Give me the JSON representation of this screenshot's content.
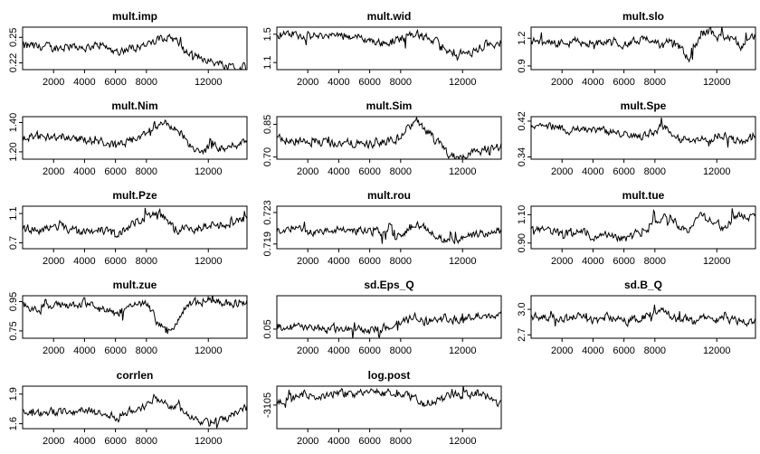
{
  "chart_data": {
    "type": "line",
    "layout": "5x3 grid of MCMC trace plots",
    "x_ticks": [
      2000,
      4000,
      6000,
      8000,
      12000
    ],
    "xlim": [
      0,
      14500
    ],
    "panels": [
      {
        "title": "mult.imp",
        "yticks": [
          "0.22",
          "0.25"
        ],
        "ylim": [
          0.212,
          0.262
        ],
        "x": [
          0,
          1000,
          2000,
          3000,
          4000,
          5000,
          6000,
          7000,
          8000,
          8800,
          9200,
          9600,
          10000,
          10500,
          11000,
          11500,
          12000,
          12500,
          13000,
          13500,
          14000,
          14500
        ],
        "y": [
          0.24,
          0.239,
          0.237,
          0.24,
          0.238,
          0.241,
          0.233,
          0.238,
          0.241,
          0.248,
          0.254,
          0.25,
          0.245,
          0.232,
          0.227,
          0.226,
          0.222,
          0.22,
          0.219,
          0.218,
          0.214,
          0.22
        ]
      },
      {
        "title": "mult.wid",
        "yticks": [
          "1.1",
          "1.5"
        ],
        "ylim": [
          1.0,
          1.6
        ],
        "x": [
          0,
          1000,
          2000,
          3000,
          4000,
          5000,
          6000,
          7000,
          8000,
          8500,
          9000,
          9500,
          10000,
          10500,
          11000,
          11500,
          12000,
          12500,
          13000,
          13500,
          14000,
          14500
        ],
        "y": [
          1.48,
          1.5,
          1.48,
          1.47,
          1.49,
          1.47,
          1.41,
          1.37,
          1.44,
          1.48,
          1.52,
          1.46,
          1.42,
          1.31,
          1.25,
          1.22,
          1.22,
          1.24,
          1.3,
          1.34,
          1.38,
          1.4
        ]
      },
      {
        "title": "mult.slo",
        "yticks": [
          "0.9",
          "1.2"
        ],
        "ylim": [
          0.86,
          1.32
        ],
        "x": [
          0,
          1000,
          2000,
          3000,
          4000,
          5000,
          6000,
          7000,
          8000,
          8500,
          9000,
          9500,
          10000,
          10500,
          11000,
          11500,
          12000,
          12500,
          13000,
          13500,
          14000,
          14500
        ],
        "y": [
          1.17,
          1.16,
          1.15,
          1.17,
          1.14,
          1.16,
          1.13,
          1.18,
          1.2,
          1.08,
          1.22,
          1.12,
          0.98,
          1.1,
          1.25,
          1.28,
          1.22,
          1.2,
          1.19,
          1.1,
          1.2,
          1.22
        ]
      },
      {
        "title": "mult.Nim",
        "yticks": [
          "1.20",
          "1.40"
        ],
        "ylim": [
          1.15,
          1.44
        ],
        "x": [
          0,
          1000,
          2000,
          3000,
          4000,
          5000,
          6000,
          7000,
          8000,
          8500,
          9000,
          9500,
          10000,
          10500,
          11000,
          11500,
          12000,
          12500,
          13000,
          13500,
          14000,
          14500
        ],
        "y": [
          1.29,
          1.3,
          1.31,
          1.3,
          1.28,
          1.27,
          1.24,
          1.27,
          1.33,
          1.38,
          1.41,
          1.37,
          1.34,
          1.3,
          1.21,
          1.2,
          1.22,
          1.23,
          1.21,
          1.24,
          1.26,
          1.29
        ]
      },
      {
        "title": "mult.Sim",
        "yticks": [
          "0.70",
          "0.85"
        ],
        "ylim": [
          0.69,
          0.885
        ],
        "x": [
          0,
          1000,
          2000,
          3000,
          4000,
          5000,
          6000,
          7000,
          8000,
          8500,
          9000,
          9500,
          10000,
          10500,
          11000,
          11500,
          12000,
          12500,
          13000,
          13500,
          14000,
          14500
        ],
        "y": [
          0.78,
          0.77,
          0.775,
          0.77,
          0.765,
          0.76,
          0.762,
          0.768,
          0.79,
          0.84,
          0.87,
          0.83,
          0.79,
          0.75,
          0.72,
          0.705,
          0.708,
          0.72,
          0.73,
          0.74,
          0.745,
          0.75
        ]
      },
      {
        "title": "mult.Spe",
        "yticks": [
          "0.34",
          "0.42"
        ],
        "ylim": [
          0.335,
          0.43
        ],
        "x": [
          0,
          1000,
          2000,
          3000,
          4000,
          5000,
          6000,
          7000,
          8000,
          8500,
          9000,
          9500,
          10000,
          10500,
          11000,
          11500,
          12000,
          12500,
          13000,
          13500,
          14000,
          14500
        ],
        "y": [
          0.405,
          0.41,
          0.4,
          0.405,
          0.4,
          0.395,
          0.39,
          0.385,
          0.4,
          0.41,
          0.395,
          0.375,
          0.38,
          0.375,
          0.385,
          0.37,
          0.39,
          0.385,
          0.38,
          0.375,
          0.38,
          0.39
        ]
      },
      {
        "title": "mult.Pze",
        "yticks": [
          "0.7",
          "1.1"
        ],
        "ylim": [
          0.62,
          1.2
        ],
        "x": [
          0,
          1000,
          2000,
          3000,
          4000,
          5000,
          6000,
          7000,
          8000,
          8500,
          9000,
          9500,
          10000,
          10500,
          11000,
          11500,
          12000,
          12500,
          13000,
          13500,
          14000,
          14500
        ],
        "y": [
          0.9,
          0.88,
          0.92,
          0.89,
          0.86,
          0.88,
          0.8,
          0.95,
          1.05,
          1.12,
          1.08,
          0.95,
          0.88,
          0.92,
          0.85,
          0.9,
          0.93,
          0.95,
          0.92,
          0.98,
          1.0,
          1.02
        ]
      },
      {
        "title": "mult.rou",
        "yticks": [
          "0.719",
          "0.723"
        ],
        "ylim": [
          0.7184,
          0.7238
        ],
        "x": [
          0,
          1000,
          2000,
          3000,
          4000,
          5000,
          6000,
          7000,
          8000,
          8500,
          9000,
          9500,
          10000,
          10500,
          11000,
          11500,
          12000,
          12500,
          13000,
          13500,
          14000,
          14500
        ],
        "y": [
          0.7208,
          0.7209,
          0.7207,
          0.7206,
          0.7208,
          0.7207,
          0.7206,
          0.7205,
          0.7206,
          0.721,
          0.7216,
          0.7213,
          0.7205,
          0.7198,
          0.7192,
          0.7194,
          0.7198,
          0.72,
          0.7202,
          0.7204,
          0.7206,
          0.7205
        ]
      },
      {
        "title": "mult.tue",
        "yticks": [
          "0.90",
          "1.10"
        ],
        "ylim": [
          0.86,
          1.16
        ],
        "x": [
          0,
          1000,
          2000,
          3000,
          4000,
          5000,
          6000,
          7000,
          8000,
          8500,
          9000,
          9500,
          10000,
          10500,
          11000,
          11500,
          12000,
          12500,
          13000,
          13500,
          14000,
          14500
        ],
        "y": [
          0.98,
          1.0,
          0.96,
          0.99,
          0.95,
          0.97,
          0.93,
          0.98,
          1.05,
          1.1,
          1.08,
          1.02,
          0.98,
          1.05,
          1.1,
          1.07,
          1.03,
          1.0,
          1.06,
          1.1,
          1.08,
          1.12
        ]
      },
      {
        "title": "mult.zue",
        "yticks": [
          "0.75",
          "0.95"
        ],
        "ylim": [
          0.7,
          0.99
        ],
        "x": [
          0,
          1000,
          2000,
          3000,
          4000,
          5000,
          6000,
          7000,
          8000,
          8500,
          9000,
          9500,
          10000,
          10500,
          11000,
          11500,
          12000,
          12500,
          13000,
          13500,
          14000,
          14500
        ],
        "y": [
          0.92,
          0.9,
          0.93,
          0.91,
          0.94,
          0.9,
          0.86,
          0.93,
          0.95,
          0.82,
          0.78,
          0.74,
          0.82,
          0.9,
          0.94,
          0.95,
          0.96,
          0.94,
          0.95,
          0.93,
          0.94,
          0.95
        ]
      },
      {
        "title": "sd.Eps_Q",
        "yticks": [
          "0.05"
        ],
        "ylim": [
          0.02,
          0.16
        ],
        "x": [
          0,
          1000,
          2000,
          3000,
          4000,
          5000,
          6000,
          7000,
          8000,
          8500,
          9000,
          9500,
          10000,
          10500,
          11000,
          11500,
          12000,
          12500,
          13000,
          13500,
          14000,
          14500
        ],
        "y": [
          0.06,
          0.058,
          0.055,
          0.052,
          0.05,
          0.048,
          0.045,
          0.055,
          0.07,
          0.085,
          0.09,
          0.075,
          0.08,
          0.095,
          0.085,
          0.075,
          0.08,
          0.09,
          0.095,
          0.085,
          0.1,
          0.11
        ]
      },
      {
        "title": "sd.B_Q",
        "yticks": [
          "2.7",
          "3.0"
        ],
        "ylim": [
          2.66,
          3.16
        ],
        "x": [
          0,
          1000,
          2000,
          3000,
          4000,
          5000,
          6000,
          7000,
          8000,
          8500,
          9000,
          9500,
          10000,
          10500,
          11000,
          11500,
          12000,
          12500,
          13000,
          13500,
          14000,
          14500
        ],
        "y": [
          2.92,
          2.9,
          2.88,
          2.93,
          2.87,
          2.91,
          2.86,
          2.9,
          2.95,
          3.0,
          2.92,
          2.88,
          2.9,
          2.86,
          2.89,
          2.91,
          2.87,
          2.9,
          2.88,
          2.86,
          2.84,
          2.86
        ]
      },
      {
        "title": "corrlen",
        "yticks": [
          "1.6",
          "1.9"
        ],
        "ylim": [
          1.55,
          1.98
        ],
        "x": [
          0,
          1000,
          2000,
          3000,
          4000,
          5000,
          6000,
          7000,
          8000,
          8500,
          9000,
          9500,
          10000,
          10500,
          11000,
          11500,
          12000,
          12500,
          13000,
          13500,
          14000,
          14500
        ],
        "y": [
          1.72,
          1.7,
          1.73,
          1.71,
          1.74,
          1.7,
          1.66,
          1.72,
          1.8,
          1.88,
          1.84,
          1.78,
          1.76,
          1.72,
          1.66,
          1.63,
          1.64,
          1.65,
          1.66,
          1.68,
          1.72,
          1.76
        ]
      },
      {
        "title": "log.post",
        "yticks": [
          "-3105"
        ],
        "ylim": [
          -3130,
          -3085
        ],
        "x": [
          0,
          1000,
          2000,
          3000,
          4000,
          5000,
          6000,
          7000,
          8000,
          8500,
          9000,
          9500,
          10000,
          10500,
          11000,
          11500,
          12000,
          12500,
          13000,
          13500,
          14000,
          14500
        ],
        "y": [
          -3104,
          -3098,
          -3094,
          -3096,
          -3092,
          -3094,
          -3090,
          -3092,
          -3094,
          -3095,
          -3100,
          -3104,
          -3102,
          -3100,
          -3096,
          -3094,
          -3093,
          -3094,
          -3092,
          -3096,
          -3100,
          -3103
        ]
      }
    ]
  }
}
